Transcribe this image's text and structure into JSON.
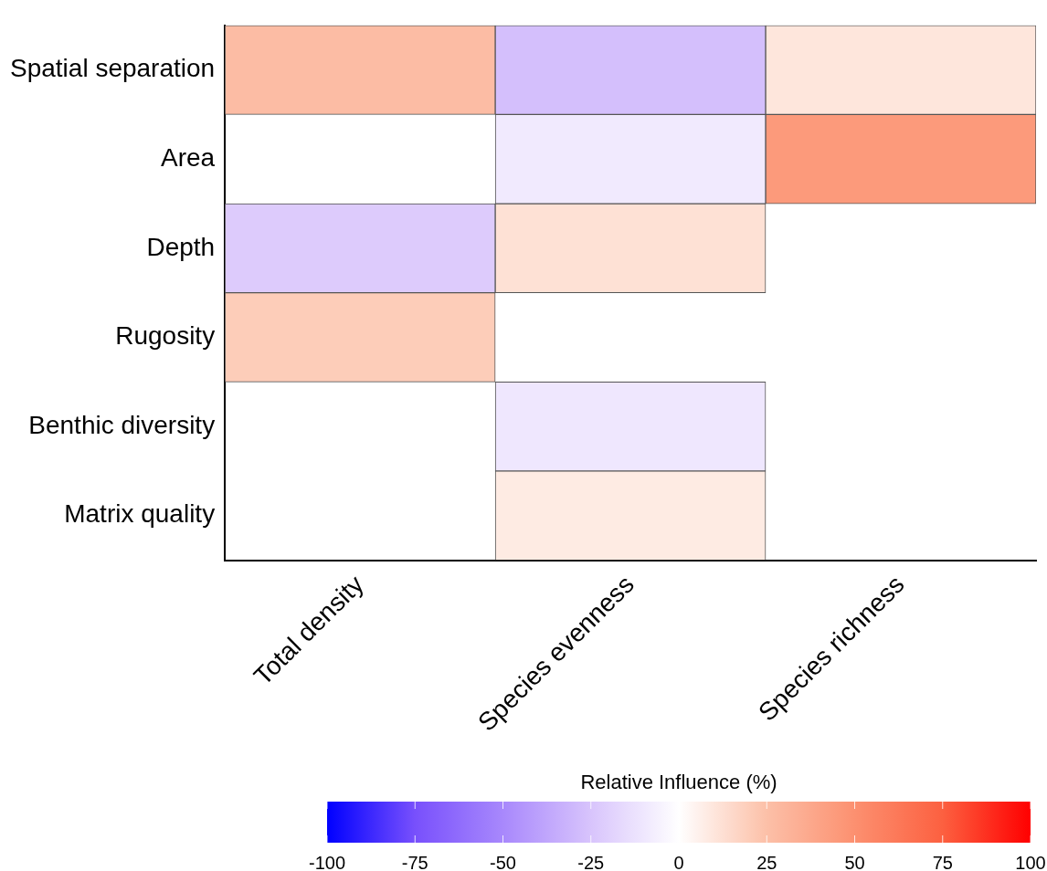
{
  "chart_data": {
    "type": "heatmap",
    "categories": [
      "Total density",
      "Species evenness",
      "Species richness"
    ],
    "y_categories": [
      "Spatial separation",
      "Area",
      "Depth",
      "Rugosity",
      "Benthic diversity",
      "Matrix quality"
    ],
    "cells": [
      [
        27,
        -27,
        10
      ],
      [
        null,
        -9,
        45
      ],
      [
        -22,
        12,
        null
      ],
      [
        20,
        null,
        null
      ],
      [
        null,
        -10,
        null
      ],
      [
        null,
        8,
        null
      ]
    ],
    "clabel": "Relative Influence (%)",
    "clim": [
      -100,
      100
    ],
    "cticks": [
      -100,
      -75,
      -50,
      -25,
      0,
      25,
      50,
      75,
      100
    ]
  }
}
